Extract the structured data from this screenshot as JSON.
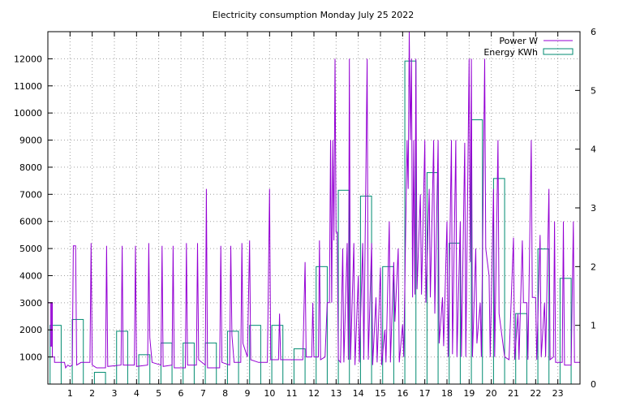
{
  "chart_data": {
    "type": "bar",
    "title": "Electricity consumption Monday July 25 2022",
    "xlabel": "",
    "ylabel": "",
    "y2label": "",
    "grid": true,
    "legend_position": "top-right",
    "x_range": [
      0,
      24
    ],
    "x_ticks": [
      "1",
      "2",
      "3",
      "4",
      "5",
      "6",
      "7",
      "8",
      "9",
      "10",
      "11",
      "12",
      "13",
      "14",
      "15",
      "16",
      "17",
      "18",
      "19",
      "20",
      "21",
      "22",
      "23"
    ],
    "y_range": [
      0,
      13000
    ],
    "y_ticks": [
      "1000",
      "2000",
      "3000",
      "4000",
      "5000",
      "6000",
      "7000",
      "8000",
      "9000",
      "10000",
      "11000",
      "12000"
    ],
    "y2_range": [
      0,
      6
    ],
    "y2_ticks": [
      "0",
      "1",
      "2",
      "3",
      "4",
      "5",
      "6"
    ],
    "series": [
      {
        "name": "Energy KWh",
        "type": "bar",
        "axis": "y2",
        "color": "#008b70",
        "hours": [
          0,
          1,
          2,
          3,
          4,
          5,
          6,
          7,
          8,
          9,
          10,
          11,
          12,
          13,
          14,
          15,
          16,
          17,
          18,
          19,
          20,
          21,
          22,
          23
        ],
        "values": [
          1.0,
          1.1,
          0.2,
          0.9,
          0.5,
          0.7,
          0.7,
          0.7,
          0.9,
          1.0,
          1.0,
          0.6,
          2.0,
          3.3,
          3.2,
          2.0,
          5.5,
          3.6,
          2.4,
          4.5,
          3.5,
          1.2,
          2.3,
          1.8
        ]
      },
      {
        "name": "Power W",
        "type": "line",
        "axis": "y",
        "color": "#9400d3",
        "points": [
          [
            0.0,
            3000
          ],
          [
            0.12,
            3000
          ],
          [
            0.12,
            1400
          ],
          [
            0.17,
            1400
          ],
          [
            0.17,
            3000
          ],
          [
            0.2,
            3000
          ],
          [
            0.2,
            1000
          ],
          [
            0.3,
            1000
          ],
          [
            0.3,
            800
          ],
          [
            0.75,
            800
          ],
          [
            0.8,
            600
          ],
          [
            0.9,
            700
          ],
          [
            1.0,
            650
          ],
          [
            1.1,
            700
          ],
          [
            1.15,
            5100
          ],
          [
            1.25,
            5100
          ],
          [
            1.3,
            700
          ],
          [
            1.5,
            800
          ],
          [
            1.9,
            800
          ],
          [
            1.95,
            5200
          ],
          [
            2.0,
            700
          ],
          [
            2.2,
            600
          ],
          [
            2.6,
            600
          ],
          [
            2.65,
            5100
          ],
          [
            2.7,
            650
          ],
          [
            3.3,
            700
          ],
          [
            3.35,
            5100
          ],
          [
            3.4,
            700
          ],
          [
            3.9,
            700
          ],
          [
            3.95,
            5100
          ],
          [
            4.0,
            650
          ],
          [
            4.5,
            700
          ],
          [
            4.55,
            5200
          ],
          [
            4.6,
            1700
          ],
          [
            4.7,
            800
          ],
          [
            5.1,
            700
          ],
          [
            5.15,
            5100
          ],
          [
            5.2,
            650
          ],
          [
            5.6,
            700
          ],
          [
            5.65,
            5100
          ],
          [
            5.7,
            600
          ],
          [
            6.2,
            600
          ],
          [
            6.25,
            5200
          ],
          [
            6.3,
            700
          ],
          [
            6.7,
            700
          ],
          [
            6.75,
            5200
          ],
          [
            6.8,
            900
          ],
          [
            7.1,
            700
          ],
          [
            7.15,
            7200
          ],
          [
            7.2,
            600
          ],
          [
            7.5,
            600
          ],
          [
            7.75,
            600
          ],
          [
            7.8,
            5100
          ],
          [
            7.85,
            800
          ],
          [
            8.2,
            700
          ],
          [
            8.25,
            5100
          ],
          [
            8.3,
            1800
          ],
          [
            8.4,
            800
          ],
          [
            8.7,
            800
          ],
          [
            8.75,
            5200
          ],
          [
            8.8,
            1500
          ],
          [
            9.0,
            1000
          ],
          [
            9.1,
            5300
          ],
          [
            9.15,
            900
          ],
          [
            9.5,
            800
          ],
          [
            9.9,
            800
          ],
          [
            10.0,
            7200
          ],
          [
            10.05,
            900
          ],
          [
            10.4,
            900
          ],
          [
            10.45,
            2600
          ],
          [
            10.5,
            900
          ],
          [
            10.8,
            900
          ],
          [
            11.3,
            900
          ],
          [
            11.5,
            900
          ],
          [
            11.6,
            4500
          ],
          [
            11.65,
            1000
          ],
          [
            11.9,
            1000
          ],
          [
            11.95,
            3000
          ],
          [
            12.0,
            1000
          ],
          [
            12.2,
            1000
          ],
          [
            12.25,
            5300
          ],
          [
            12.3,
            900
          ],
          [
            12.5,
            1000
          ],
          [
            12.6,
            3000
          ],
          [
            12.7,
            3000
          ],
          [
            12.75,
            9000
          ],
          [
            12.8,
            3000
          ],
          [
            12.85,
            9000
          ],
          [
            12.9,
            5300
          ],
          [
            12.95,
            12000
          ],
          [
            13.0,
            5600
          ],
          [
            13.05,
            5600
          ],
          [
            13.1,
            900
          ],
          [
            13.2,
            800
          ],
          [
            13.3,
            5000
          ],
          [
            13.35,
            800
          ],
          [
            13.5,
            5200
          ],
          [
            13.55,
            900
          ],
          [
            13.6,
            12000
          ],
          [
            13.65,
            900
          ],
          [
            13.8,
            5200
          ],
          [
            13.85,
            700
          ],
          [
            14.0,
            4000
          ],
          [
            14.05,
            800
          ],
          [
            14.2,
            5200
          ],
          [
            14.25,
            900
          ],
          [
            14.4,
            12000
          ],
          [
            14.45,
            900
          ],
          [
            14.6,
            5200
          ],
          [
            14.65,
            700
          ],
          [
            14.8,
            3200
          ],
          [
            14.85,
            800
          ],
          [
            15.0,
            4300
          ],
          [
            15.05,
            700
          ],
          [
            15.2,
            2000
          ],
          [
            15.25,
            800
          ],
          [
            15.4,
            6000
          ],
          [
            15.45,
            800
          ],
          [
            15.6,
            4500
          ],
          [
            15.65,
            2300
          ],
          [
            15.8,
            5000
          ],
          [
            15.85,
            800
          ],
          [
            16.0,
            2200
          ],
          [
            16.05,
            1000
          ],
          [
            16.2,
            9000
          ],
          [
            16.25,
            7200
          ],
          [
            16.3,
            13000
          ],
          [
            16.35,
            9000
          ],
          [
            16.4,
            12000
          ],
          [
            16.45,
            3200
          ],
          [
            16.5,
            9000
          ],
          [
            16.55,
            3300
          ],
          [
            16.6,
            12000
          ],
          [
            16.65,
            3500
          ],
          [
            16.8,
            7000
          ],
          [
            16.85,
            3300
          ],
          [
            17.0,
            9000
          ],
          [
            17.05,
            3000
          ],
          [
            17.2,
            7200
          ],
          [
            17.25,
            3200
          ],
          [
            17.4,
            9000
          ],
          [
            17.45,
            2600
          ],
          [
            17.6,
            9000
          ],
          [
            17.65,
            1500
          ],
          [
            17.8,
            3200
          ],
          [
            17.85,
            1400
          ],
          [
            18.0,
            6000
          ],
          [
            18.05,
            1000
          ],
          [
            18.2,
            9000
          ],
          [
            18.25,
            1100
          ],
          [
            18.4,
            9000
          ],
          [
            18.45,
            1000
          ],
          [
            18.6,
            6000
          ],
          [
            18.65,
            1000
          ],
          [
            18.8,
            8900
          ],
          [
            18.85,
            1000
          ],
          [
            19.0,
            12000
          ],
          [
            19.05,
            4500
          ],
          [
            19.1,
            12000
          ],
          [
            19.15,
            1000
          ],
          [
            19.3,
            5000
          ],
          [
            19.35,
            1500
          ],
          [
            19.5,
            3000
          ],
          [
            19.55,
            1000
          ],
          [
            19.7,
            12000
          ],
          [
            19.75,
            5000
          ],
          [
            19.9,
            4000
          ],
          [
            19.95,
            1000
          ],
          [
            20.1,
            7200
          ],
          [
            20.15,
            1000
          ],
          [
            20.3,
            9000
          ],
          [
            20.35,
            2600
          ],
          [
            20.6,
            1000
          ],
          [
            20.8,
            900
          ],
          [
            21.0,
            5400
          ],
          [
            21.05,
            900
          ],
          [
            21.2,
            2600
          ],
          [
            21.25,
            900
          ],
          [
            21.4,
            5300
          ],
          [
            21.45,
            3000
          ],
          [
            21.6,
            3000
          ],
          [
            21.65,
            900
          ],
          [
            21.8,
            9000
          ],
          [
            21.85,
            3200
          ],
          [
            22.0,
            3200
          ],
          [
            22.05,
            900
          ],
          [
            22.2,
            5500
          ],
          [
            22.25,
            1000
          ],
          [
            22.4,
            3000
          ],
          [
            22.45,
            1000
          ],
          [
            22.6,
            7200
          ],
          [
            22.65,
            900
          ],
          [
            22.8,
            1000
          ],
          [
            22.85,
            6000
          ],
          [
            22.9,
            800
          ],
          [
            23.2,
            800
          ],
          [
            23.25,
            6000
          ],
          [
            23.3,
            700
          ],
          [
            23.6,
            700
          ],
          [
            23.7,
            6000
          ],
          [
            23.75,
            800
          ],
          [
            24.0,
            800
          ]
        ]
      }
    ]
  }
}
